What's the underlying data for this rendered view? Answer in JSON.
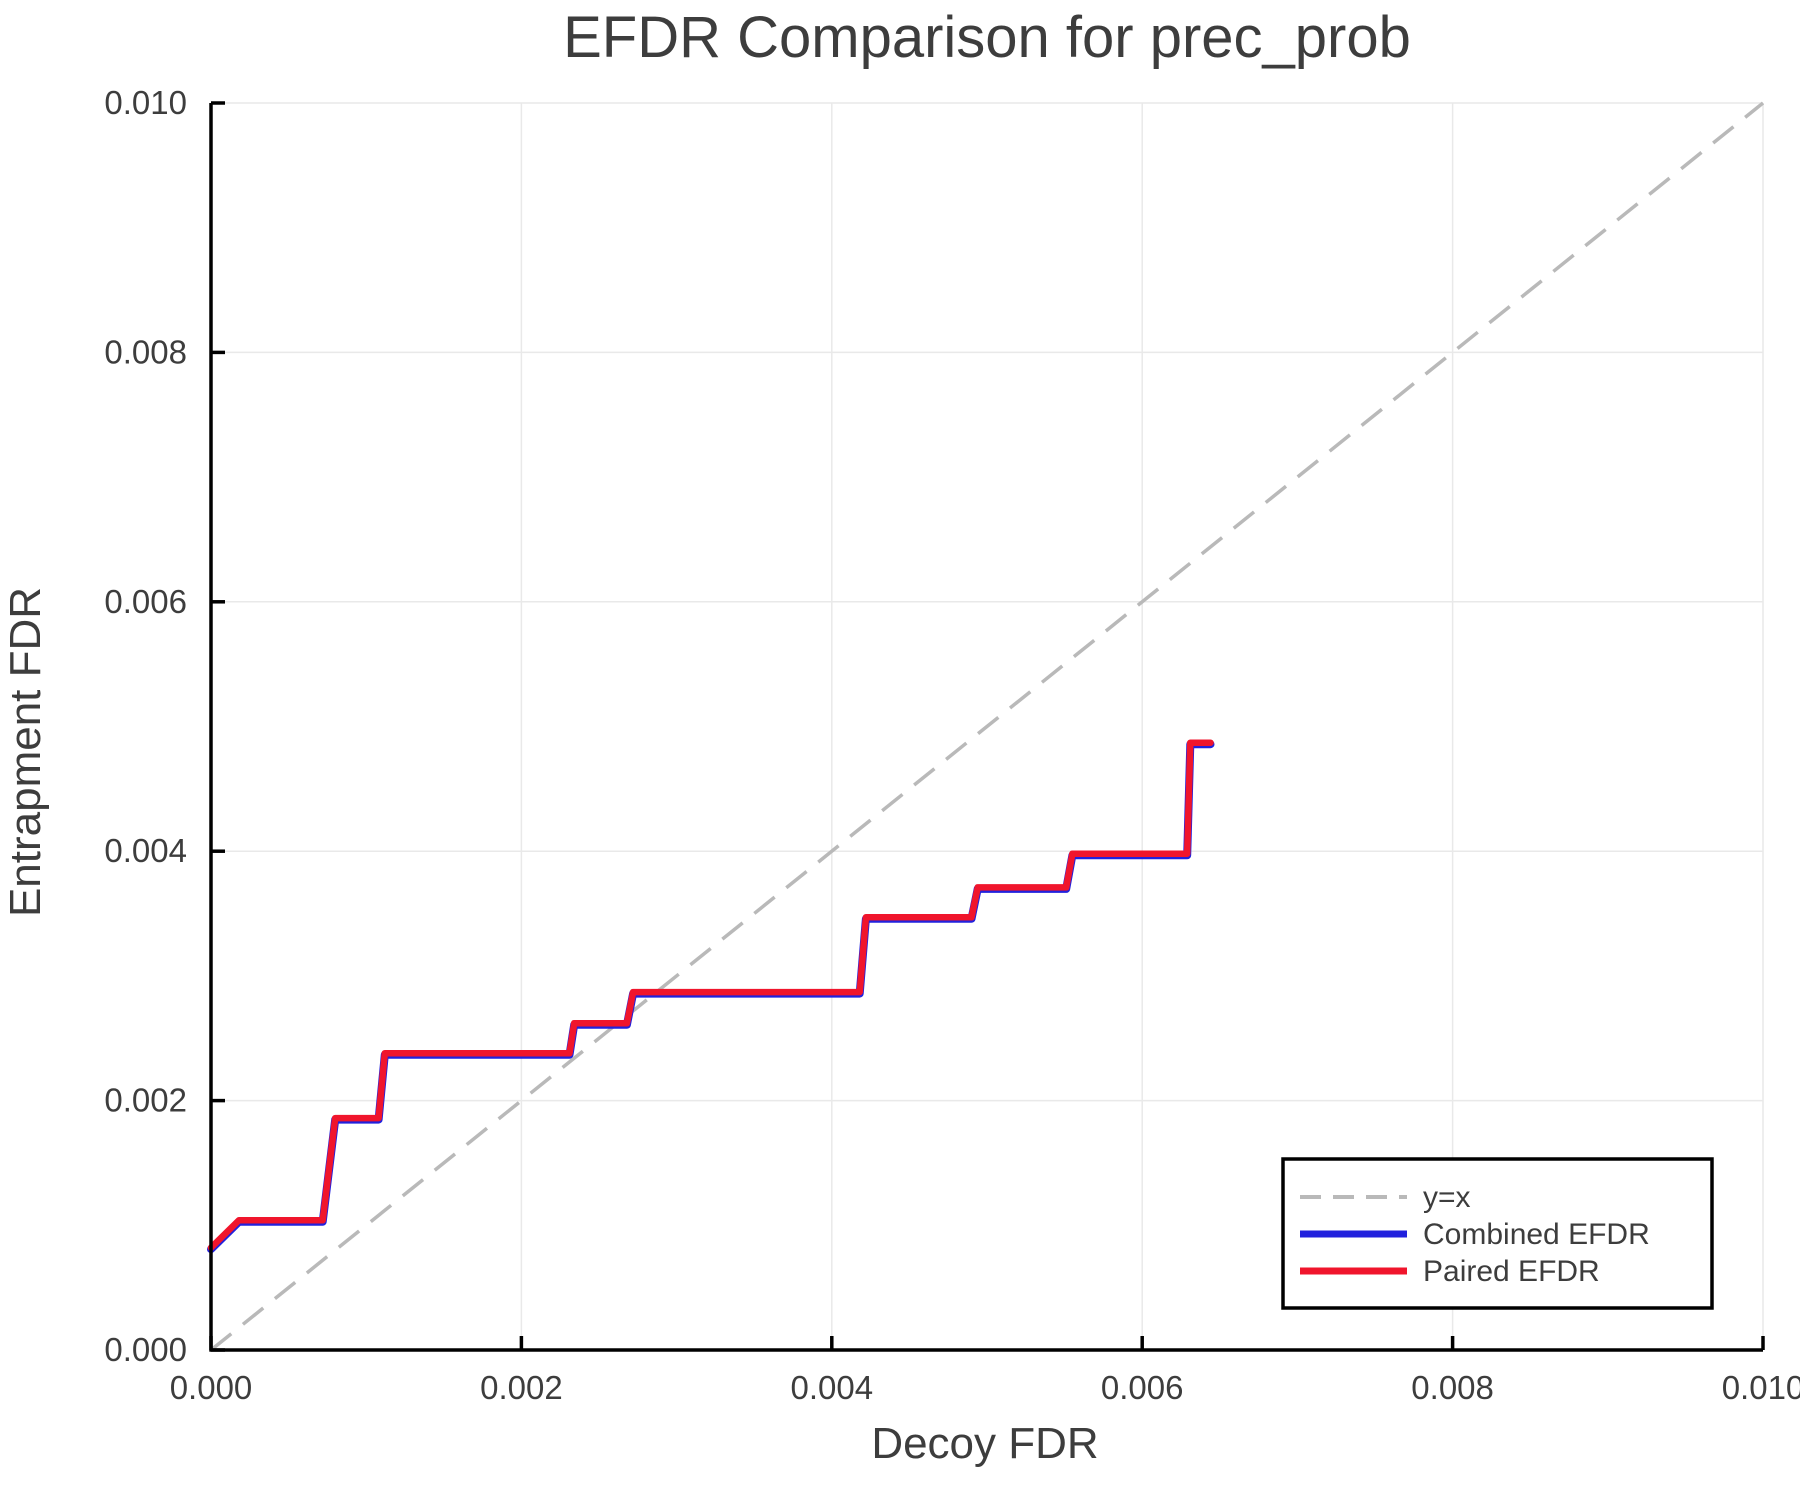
{
  "chart_data": {
    "type": "line",
    "title": "EFDR Comparison for prec_prob",
    "xlabel": "Decoy FDR",
    "ylabel": "Entrapment FDR",
    "xlim": [
      0.0,
      0.01
    ],
    "ylim": [
      0.0,
      0.01
    ],
    "grid": true,
    "xticks": {
      "values": [
        0.0,
        0.002,
        0.004,
        0.006,
        0.008,
        0.01
      ],
      "labels": [
        "0.000",
        "0.002",
        "0.004",
        "0.006",
        "0.008",
        "0.010"
      ]
    },
    "yticks": {
      "values": [
        0.0,
        0.002,
        0.004,
        0.006,
        0.008,
        0.01
      ],
      "labels": [
        "0.000",
        "0.002",
        "0.004",
        "0.006",
        "0.008",
        "0.010"
      ]
    },
    "colors": {
      "grid": "#e9e9e9",
      "axis": "#000000",
      "text": "#3d3d3d",
      "background": "#ffffff"
    },
    "reference_line": {
      "label": "y=x",
      "color": "#b9b9b9",
      "style": "dashed"
    },
    "legend": {
      "position": "lower right"
    },
    "series": [
      {
        "name": "Combined EFDR",
        "color": "#2121dd",
        "points": [
          [
            0.0,
            0.00082
          ],
          [
            0.00018,
            0.00104
          ],
          [
            0.00072,
            0.00104
          ],
          [
            0.0008,
            0.00186
          ],
          [
            0.00108,
            0.00186
          ],
          [
            0.00112,
            0.00238
          ],
          [
            0.00231,
            0.00238
          ],
          [
            0.00234,
            0.00262
          ],
          [
            0.00268,
            0.00262
          ],
          [
            0.00272,
            0.00287
          ],
          [
            0.00418,
            0.00287
          ],
          [
            0.00422,
            0.00347
          ],
          [
            0.0049,
            0.00347
          ],
          [
            0.00494,
            0.00371
          ],
          [
            0.00551,
            0.00371
          ],
          [
            0.00555,
            0.00398
          ],
          [
            0.00629,
            0.00398
          ],
          [
            0.00631,
            0.00487
          ],
          [
            0.00644,
            0.00487
          ]
        ]
      },
      {
        "name": "Paired EFDR",
        "color": "#f0152c",
        "points": [
          [
            0.0,
            0.00082
          ],
          [
            0.00018,
            0.00104
          ],
          [
            0.00072,
            0.00104
          ],
          [
            0.0008,
            0.00186
          ],
          [
            0.00108,
            0.00186
          ],
          [
            0.00112,
            0.00238
          ],
          [
            0.00231,
            0.00238
          ],
          [
            0.00234,
            0.00262
          ],
          [
            0.00268,
            0.00262
          ],
          [
            0.00272,
            0.00287
          ],
          [
            0.00418,
            0.00287
          ],
          [
            0.00422,
            0.00347
          ],
          [
            0.0049,
            0.00347
          ],
          [
            0.00494,
            0.00371
          ],
          [
            0.00551,
            0.00371
          ],
          [
            0.00555,
            0.00398
          ],
          [
            0.00629,
            0.00398
          ],
          [
            0.00631,
            0.00487
          ],
          [
            0.00644,
            0.00487
          ]
        ]
      }
    ]
  }
}
